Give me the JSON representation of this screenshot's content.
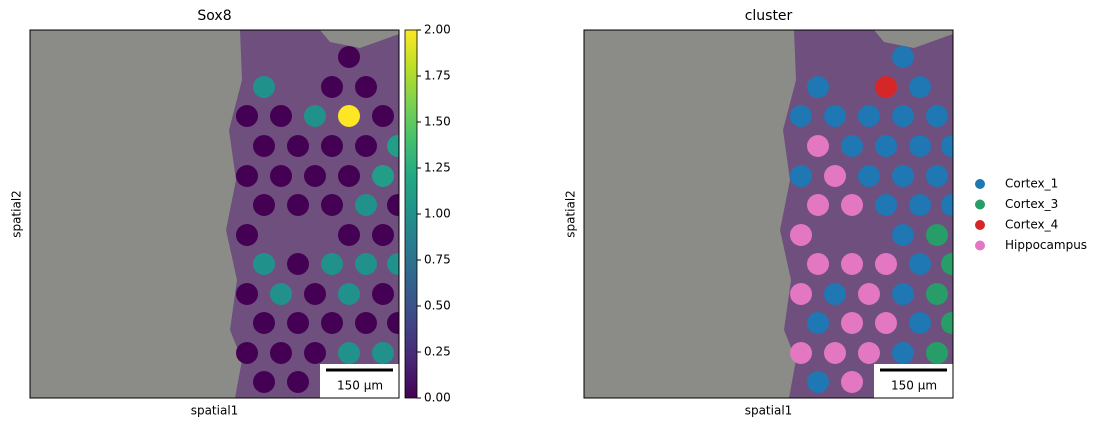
{
  "chart_data": [
    {
      "type": "spatial",
      "title": "Sox8",
      "xlabel": "spatial1",
      "ylabel": "spatial2",
      "xlim": [
        0,
        369
      ],
      "ylim": [
        368,
        0
      ],
      "x": [
        319,
        234,
        302,
        336,
        217,
        251,
        285,
        319,
        353,
        234,
        268,
        302,
        336,
        368,
        217,
        251,
        285,
        319,
        353,
        234,
        268,
        302,
        336,
        368,
        217,
        319,
        353,
        234,
        268,
        302,
        336,
        368,
        217,
        251,
        285,
        319,
        353,
        234,
        268,
        302,
        336,
        368,
        217,
        251,
        285,
        319,
        353,
        234,
        268
      ],
      "y": [
        27,
        57,
        57,
        57,
        86,
        86,
        86,
        86,
        86,
        116,
        116,
        116,
        116,
        116,
        146,
        146,
        146,
        146,
        146,
        175,
        175,
        175,
        175,
        175,
        205,
        205,
        205,
        234,
        234,
        234,
        234,
        234,
        264,
        264,
        264,
        264,
        264,
        293,
        293,
        293,
        293,
        293,
        323,
        323,
        323,
        323,
        323,
        352,
        352
      ],
      "values": [
        0,
        1.0,
        0,
        0,
        0,
        0,
        1.0,
        2.0,
        0,
        0,
        0,
        0,
        0,
        1.1,
        0,
        0,
        0,
        0,
        1.1,
        0,
        0,
        0,
        1.0,
        0,
        0,
        0,
        0,
        1.0,
        0,
        1.0,
        1.0,
        1.0,
        0,
        1.0,
        0,
        1.0,
        0,
        0,
        0,
        0,
        0,
        0,
        0,
        0,
        0,
        1.0,
        1.0,
        0,
        0
      ],
      "colormap": "viridis",
      "clim": [
        0,
        2
      ],
      "cticks": [
        {
          "value": 0,
          "label": "0.00"
        },
        {
          "value": 0.25,
          "label": "0.25"
        },
        {
          "value": 0.5,
          "label": "0.50"
        },
        {
          "value": 0.75,
          "label": "0.75"
        },
        {
          "value": 1,
          "label": "1.00"
        },
        {
          "value": 1.25,
          "label": "1.25"
        },
        {
          "value": 1.5,
          "label": "1.50"
        },
        {
          "value": 1.75,
          "label": "1.75"
        },
        {
          "value": 2,
          "label": "2.00"
        }
      ],
      "scalebar": "150 µm"
    },
    {
      "type": "spatial",
      "title": "cluster",
      "xlabel": "spatial1",
      "ylabel": "spatial2",
      "xlim": [
        0,
        369
      ],
      "ylim": [
        368,
        0
      ],
      "series": [
        {
          "name": "Cortex_1",
          "color": "#1f77b4",
          "x": [
            319,
            234,
            336,
            217,
            251,
            285,
            319,
            353,
            268,
            302,
            336,
            368,
            217,
            285,
            319,
            353,
            302,
            336,
            368,
            319,
            336,
            251,
            319,
            234,
            336,
            319,
            234
          ],
          "y": [
            27,
            57,
            57,
            86,
            86,
            86,
            86,
            86,
            116,
            116,
            116,
            116,
            146,
            146,
            146,
            146,
            175,
            175,
            175,
            205,
            234,
            264,
            264,
            293,
            293,
            323,
            352
          ]
        },
        {
          "name": "Cortex_3",
          "color": "#279e68",
          "x": [
            353,
            368,
            353,
            368,
            353
          ],
          "y": [
            205,
            234,
            264,
            293,
            323
          ]
        },
        {
          "name": "Cortex_4",
          "color": "#d62728",
          "x": [
            302
          ],
          "y": [
            57
          ]
        },
        {
          "name": "Hippocampus",
          "color": "#e377c2",
          "x": [
            234,
            251,
            234,
            268,
            217,
            234,
            268,
            302,
            217,
            285,
            268,
            302,
            217,
            251,
            285,
            268
          ],
          "y": [
            116,
            146,
            175,
            175,
            205,
            234,
            234,
            234,
            264,
            264,
            293,
            293,
            323,
            323,
            323,
            352
          ]
        }
      ],
      "legend": "right",
      "scalebar": "150 µm"
    }
  ]
}
